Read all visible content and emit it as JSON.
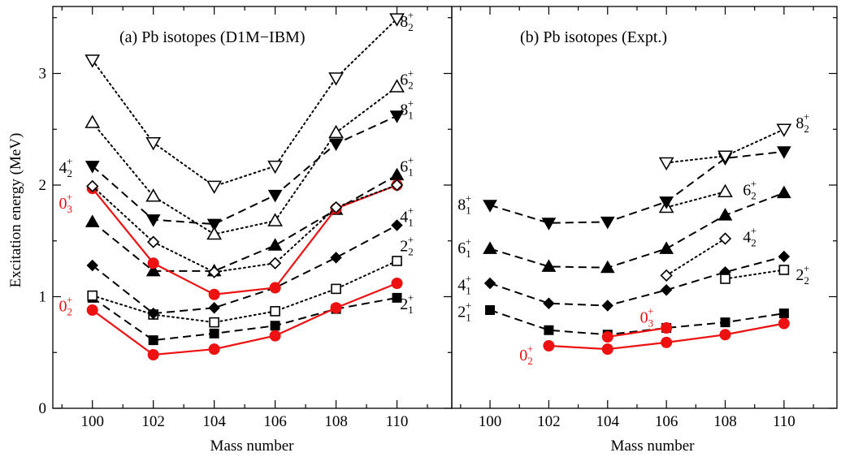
{
  "chart_data": [
    {
      "type": "line",
      "title": "(a) Pb isotopes (D1M−IBM)",
      "xlabel": "Mass number",
      "ylabel": "Excitation energy (MeV)",
      "xlim": [
        98.7,
        111.8
      ],
      "ylim": [
        0,
        3.6
      ],
      "xticks": [
        100,
        102,
        104,
        106,
        108,
        110
      ],
      "yticks": [
        0,
        1,
        2,
        3
      ],
      "series": [
        {
          "key": "2_1",
          "style": "dash",
          "marker": "square-filled",
          "color": "#000000",
          "x": [
            100,
            102,
            104,
            106,
            108,
            110
          ],
          "y": [
            0.99,
            0.61,
            0.67,
            0.74,
            0.89,
            0.99
          ]
        },
        {
          "key": "0_2",
          "style": "solid",
          "marker": "circle-filled",
          "color": "#ee1111",
          "x": [
            100,
            102,
            104,
            106,
            108,
            110
          ],
          "y": [
            0.88,
            0.48,
            0.53,
            0.65,
            0.9,
            1.12
          ]
        },
        {
          "key": "2_2",
          "style": "dot",
          "marker": "square-open",
          "color": "#000000",
          "x": [
            100,
            102,
            104,
            106,
            108,
            110
          ],
          "y": [
            1.01,
            0.84,
            0.77,
            0.87,
            1.07,
            1.32
          ]
        },
        {
          "key": "4_1",
          "style": "dash",
          "marker": "diamond-filled",
          "color": "#000000",
          "x": [
            100,
            102,
            104,
            106,
            108,
            110
          ],
          "y": [
            1.28,
            0.85,
            0.9,
            1.08,
            1.35,
            1.64
          ]
        },
        {
          "key": "6_1",
          "style": "dash",
          "marker": "triangle-up-filled",
          "color": "#000000",
          "x": [
            100,
            102,
            104,
            106,
            108,
            110
          ],
          "y": [
            1.67,
            1.23,
            1.23,
            1.46,
            1.78,
            2.09
          ]
        },
        {
          "key": "0_3",
          "style": "solid",
          "marker": "circle-filled",
          "color": "#ee1111",
          "x": [
            100,
            102,
            104,
            106,
            108,
            110
          ],
          "y": [
            1.97,
            1.3,
            1.02,
            1.08,
            1.79,
            2.0
          ]
        },
        {
          "key": "4_2",
          "style": "dot",
          "marker": "diamond-open",
          "color": "#000000",
          "x": [
            100,
            102,
            104,
            106,
            108,
            110
          ],
          "y": [
            1.99,
            1.49,
            1.22,
            1.3,
            1.8,
            2.0
          ]
        },
        {
          "key": "8_1",
          "style": "dash",
          "marker": "triangle-down-filled",
          "color": "#000000",
          "x": [
            100,
            102,
            104,
            106,
            108,
            110
          ],
          "y": [
            2.17,
            1.69,
            1.65,
            1.91,
            2.37,
            2.62
          ]
        },
        {
          "key": "6_2",
          "style": "dot",
          "marker": "triangle-up-open",
          "color": "#000000",
          "x": [
            100,
            102,
            104,
            106,
            108,
            110
          ],
          "y": [
            2.56,
            1.9,
            1.56,
            1.68,
            2.47,
            2.88
          ]
        },
        {
          "key": "8_2",
          "style": "dot",
          "marker": "triangle-down-open",
          "color": "#000000",
          "x": [
            100,
            102,
            104,
            106,
            108,
            110
          ],
          "y": [
            3.12,
            2.38,
            1.99,
            2.17,
            2.96,
            3.49
          ]
        }
      ],
      "labels": [
        {
          "j": "8",
          "n": "2",
          "color": "#000000",
          "x": 110.1,
          "y": 3.47
        },
        {
          "j": "6",
          "n": "2",
          "color": "#000000",
          "x": 110.1,
          "y": 2.95
        },
        {
          "j": "8",
          "n": "1",
          "color": "#000000",
          "x": 110.1,
          "y": 2.68
        },
        {
          "j": "6",
          "n": "1",
          "color": "#000000",
          "x": 110.1,
          "y": 2.17
        },
        {
          "j": "4",
          "n": "1",
          "color": "#000000",
          "x": 110.1,
          "y": 1.72
        },
        {
          "j": "2",
          "n": "2",
          "color": "#000000",
          "x": 110.1,
          "y": 1.46
        },
        {
          "j": "2",
          "n": "1",
          "color": "#000000",
          "x": 110.1,
          "y": 0.94
        },
        {
          "j": "4",
          "n": "2",
          "color": "#000000",
          "x": 98.9,
          "y": 2.16
        },
        {
          "j": "0",
          "n": "3",
          "color": "#ee1111",
          "x": 98.9,
          "y": 1.84
        },
        {
          "j": "0",
          "n": "2",
          "color": "#ee1111",
          "x": 98.9,
          "y": 0.92
        }
      ]
    },
    {
      "type": "line",
      "title": "(b) Pb isotopes (Expt.)",
      "xlabel": "Mass number",
      "ylabel": "",
      "xlim": [
        98.7,
        111.8
      ],
      "ylim": [
        0,
        3.6
      ],
      "xticks": [
        100,
        102,
        104,
        106,
        108,
        110
      ],
      "yticks": [],
      "series": [
        {
          "key": "2_1",
          "style": "dash",
          "marker": "square-filled",
          "color": "#000000",
          "x": [
            100,
            102,
            104,
            106,
            108,
            110
          ],
          "y": [
            0.88,
            0.7,
            0.66,
            0.72,
            0.77,
            0.85
          ]
        },
        {
          "key": "0_2",
          "style": "solid",
          "marker": "circle-filled",
          "color": "#ee1111",
          "x": [
            102,
            104,
            106,
            108,
            110
          ],
          "y": [
            0.56,
            0.53,
            0.59,
            0.66,
            0.76
          ]
        },
        {
          "key": "0_3",
          "style": "solid",
          "marker": "circle-filled",
          "color": "#ee1111",
          "x": [
            104,
            106
          ],
          "y": [
            0.64,
            0.72
          ]
        },
        {
          "key": "4_1",
          "style": "dash",
          "marker": "diamond-filled",
          "color": "#000000",
          "x": [
            100,
            102,
            104,
            106,
            108,
            110
          ],
          "y": [
            1.12,
            0.94,
            0.92,
            1.06,
            1.22,
            1.36
          ]
        },
        {
          "key": "2_2",
          "style": "dot",
          "marker": "square-open",
          "color": "#000000",
          "x": [
            108,
            110
          ],
          "y": [
            1.16,
            1.24
          ]
        },
        {
          "key": "4_2",
          "style": "dot",
          "marker": "diamond-open",
          "color": "#000000",
          "x": [
            106,
            108
          ],
          "y": [
            1.19,
            1.52
          ]
        },
        {
          "key": "6_1",
          "style": "dash",
          "marker": "triangle-up-filled",
          "color": "#000000",
          "x": [
            100,
            102,
            104,
            106,
            108,
            110
          ],
          "y": [
            1.43,
            1.27,
            1.26,
            1.43,
            1.73,
            1.93
          ]
        },
        {
          "key": "6_2",
          "style": "dot",
          "marker": "triangle-up-open",
          "color": "#000000",
          "x": [
            106,
            108
          ],
          "y": [
            1.8,
            1.94
          ]
        },
        {
          "key": "8_1",
          "style": "dash",
          "marker": "triangle-down-filled",
          "color": "#000000",
          "x": [
            100,
            102,
            104,
            106,
            108,
            110
          ],
          "y": [
            1.82,
            1.66,
            1.67,
            1.85,
            2.24,
            2.3
          ]
        },
        {
          "key": "8_2",
          "style": "dot",
          "marker": "triangle-down-open",
          "color": "#000000",
          "x": [
            106,
            108,
            110
          ],
          "y": [
            2.2,
            2.26,
            2.5
          ]
        }
      ],
      "labels": [
        {
          "j": "8",
          "n": "2",
          "color": "#000000",
          "x": 110.4,
          "y": 2.56
        },
        {
          "j": "6",
          "n": "2",
          "color": "#000000",
          "x": 108.6,
          "y": 1.96
        },
        {
          "j": "4",
          "n": "2",
          "color": "#000000",
          "x": 108.6,
          "y": 1.54
        },
        {
          "j": "2",
          "n": "2",
          "color": "#000000",
          "x": 110.4,
          "y": 1.2
        },
        {
          "j": "8",
          "n": "1",
          "color": "#000000",
          "x": 98.9,
          "y": 1.83
        },
        {
          "j": "6",
          "n": "1",
          "color": "#000000",
          "x": 98.9,
          "y": 1.44
        },
        {
          "j": "4",
          "n": "1",
          "color": "#000000",
          "x": 98.9,
          "y": 1.11
        },
        {
          "j": "2",
          "n": "1",
          "color": "#000000",
          "x": 98.9,
          "y": 0.87
        },
        {
          "j": "0",
          "n": "3",
          "color": "#ee1111",
          "x": 105.1,
          "y": 0.82
        },
        {
          "j": "0",
          "n": "2",
          "color": "#ee1111",
          "x": 101.0,
          "y": 0.48
        }
      ]
    }
  ]
}
